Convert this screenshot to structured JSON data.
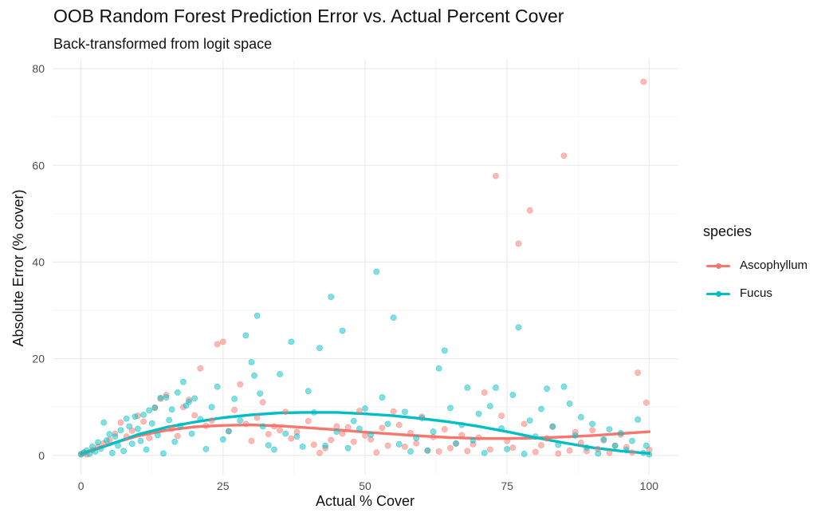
{
  "chart_data": {
    "type": "scatter",
    "title": "OOB Random Forest Prediction Error vs. Actual Percent Cover",
    "subtitle": "Back-transformed from logit space",
    "xlabel": "Actual % Cover",
    "ylabel": "Absolute Error (% cover)",
    "xlim": [
      -5,
      105
    ],
    "ylim": [
      -4,
      82
    ],
    "x_ticks": [
      0,
      25,
      50,
      75,
      100
    ],
    "y_ticks": [
      0,
      20,
      40,
      60,
      80
    ],
    "x_tick_labels": [
      "0",
      "25",
      "50",
      "75",
      "100"
    ],
    "y_tick_labels": [
      "0",
      "20",
      "40",
      "60",
      "80"
    ],
    "grid": true,
    "legend": {
      "title": "species",
      "placement": "right"
    },
    "series": [
      {
        "name": "Ascophyllum",
        "color": "#F8766D",
        "points": [
          [
            0,
            0.3
          ],
          [
            0.5,
            0.5
          ],
          [
            1,
            0.2
          ],
          [
            2,
            1.1
          ],
          [
            3,
            1.8
          ],
          [
            4,
            2.5
          ],
          [
            5,
            3.2
          ],
          [
            6,
            4.5
          ],
          [
            7,
            6.8
          ],
          [
            8,
            3.9
          ],
          [
            9,
            5.1
          ],
          [
            10,
            8.2
          ],
          [
            11,
            7.0
          ],
          [
            12,
            3.6
          ],
          [
            13,
            9.8
          ],
          [
            14,
            11.7
          ],
          [
            15,
            12.5
          ],
          [
            16,
            5.5
          ],
          [
            17,
            4.0
          ],
          [
            18,
            10.0
          ],
          [
            19,
            11.5
          ],
          [
            20,
            8.3
          ],
          [
            21,
            18.0
          ],
          [
            22,
            6.1
          ],
          [
            23,
            7.2
          ],
          [
            24,
            23.0
          ],
          [
            25,
            23.5
          ],
          [
            26,
            5.0
          ],
          [
            27,
            9.4
          ],
          [
            28,
            14.7
          ],
          [
            29,
            6.5
          ],
          [
            30,
            3.0
          ],
          [
            31,
            7.8
          ],
          [
            32,
            11.0
          ],
          [
            33,
            4.4
          ],
          [
            34,
            6.0
          ],
          [
            35,
            5.2
          ],
          [
            36,
            9.0
          ],
          [
            37,
            3.5
          ],
          [
            38,
            4.8
          ],
          [
            40,
            7.1
          ],
          [
            41,
            2.2
          ],
          [
            42,
            0.5
          ],
          [
            43,
            1.5
          ],
          [
            44,
            3.2
          ],
          [
            45,
            6.0
          ],
          [
            46,
            4.5
          ],
          [
            47,
            5.8
          ],
          [
            48,
            2.8
          ],
          [
            49,
            9.2
          ],
          [
            50,
            4.1
          ],
          [
            51,
            3.3
          ],
          [
            52,
            0.6
          ],
          [
            53,
            5.7
          ],
          [
            54,
            2.0
          ],
          [
            55,
            9.1
          ],
          [
            56,
            6.3
          ],
          [
            57,
            1.8
          ],
          [
            58,
            4.6
          ],
          [
            59,
            2.5
          ],
          [
            60,
            8.0
          ],
          [
            61,
            1.0
          ],
          [
            62,
            3.8
          ],
          [
            63,
            0.8
          ],
          [
            64,
            5.4
          ],
          [
            65,
            1.5
          ],
          [
            66,
            2.4
          ],
          [
            67,
            4.2
          ],
          [
            68,
            0.9
          ],
          [
            69,
            2.3
          ],
          [
            70,
            3.7
          ],
          [
            71,
            13.0
          ],
          [
            72,
            1.2
          ],
          [
            73,
            57.8
          ],
          [
            74,
            8.2
          ],
          [
            75,
            3.0
          ],
          [
            76,
            1.6
          ],
          [
            77,
            43.8
          ],
          [
            78,
            6.5
          ],
          [
            79,
            50.7
          ],
          [
            80,
            0.7
          ],
          [
            81,
            2.1
          ],
          [
            82,
            3.5
          ],
          [
            83,
            5.9
          ],
          [
            84,
            0.4
          ],
          [
            85,
            62.0
          ],
          [
            86,
            1.0
          ],
          [
            87,
            4.8
          ],
          [
            88,
            2.6
          ],
          [
            89,
            0.9
          ],
          [
            90,
            5.2
          ],
          [
            91,
            1.3
          ],
          [
            92,
            3.1
          ],
          [
            93,
            0.5
          ],
          [
            94,
            2.0
          ],
          [
            95,
            4.3
          ],
          [
            96,
            1.7
          ],
          [
            97,
            0.6
          ],
          [
            98,
            17.1
          ],
          [
            99,
            77.3
          ],
          [
            99.5,
            10.9
          ],
          [
            100,
            1.2
          ]
        ],
        "smooth": [
          [
            0,
            0.3
          ],
          [
            5,
            2.3
          ],
          [
            10,
            4.0
          ],
          [
            15,
            5.2
          ],
          [
            20,
            5.9
          ],
          [
            25,
            6.2
          ],
          [
            30,
            6.3
          ],
          [
            35,
            6.1
          ],
          [
            40,
            5.7
          ],
          [
            45,
            5.3
          ],
          [
            50,
            4.8
          ],
          [
            55,
            4.4
          ],
          [
            60,
            4.0
          ],
          [
            65,
            3.7
          ],
          [
            70,
            3.5
          ],
          [
            75,
            3.5
          ],
          [
            80,
            3.6
          ],
          [
            85,
            3.8
          ],
          [
            90,
            4.1
          ],
          [
            95,
            4.5
          ],
          [
            100,
            4.9
          ]
        ]
      },
      {
        "name": "Fucus",
        "color": "#00BFC4",
        "points": [
          [
            0,
            0.2
          ],
          [
            0.5,
            0.6
          ],
          [
            1,
            1.0
          ],
          [
            1.5,
            0.3
          ],
          [
            2,
            1.8
          ],
          [
            2.5,
            0.8
          ],
          [
            3,
            2.7
          ],
          [
            3.5,
            1.4
          ],
          [
            4,
            6.8
          ],
          [
            4.5,
            3.1
          ],
          [
            5,
            4.4
          ],
          [
            5.5,
            0.5
          ],
          [
            6,
            3.9
          ],
          [
            6.5,
            2.0
          ],
          [
            7,
            5.2
          ],
          [
            7.5,
            0.9
          ],
          [
            8,
            7.6
          ],
          [
            8.5,
            6.0
          ],
          [
            9,
            2.4
          ],
          [
            9.5,
            8.0
          ],
          [
            10,
            5.5
          ],
          [
            10.5,
            3.0
          ],
          [
            11,
            8.4
          ],
          [
            11.5,
            1.2
          ],
          [
            12,
            9.3
          ],
          [
            12.5,
            6.6
          ],
          [
            13,
            9.9
          ],
          [
            13.5,
            4.2
          ],
          [
            14,
            11.9
          ],
          [
            14.5,
            0.4
          ],
          [
            15,
            12.0
          ],
          [
            15.5,
            7.3
          ],
          [
            16,
            9.5
          ],
          [
            16.5,
            2.8
          ],
          [
            17,
            13.0
          ],
          [
            17.5,
            6.1
          ],
          [
            18,
            15.2
          ],
          [
            18.5,
            10.3
          ],
          [
            19,
            11.1
          ],
          [
            19.5,
            4.5
          ],
          [
            20,
            11.8
          ],
          [
            21,
            7.5
          ],
          [
            22,
            1.3
          ],
          [
            23,
            10.0
          ],
          [
            24,
            14.2
          ],
          [
            25,
            3.3
          ],
          [
            26,
            5.0
          ],
          [
            27,
            11.7
          ],
          [
            28,
            7.2
          ],
          [
            29,
            24.8
          ],
          [
            30,
            19.3
          ],
          [
            30.5,
            16.5
          ],
          [
            31,
            28.9
          ],
          [
            31.5,
            12.8
          ],
          [
            32,
            6.0
          ],
          [
            33,
            2.1
          ],
          [
            34,
            1.2
          ],
          [
            35,
            16.8
          ],
          [
            36,
            4.5
          ],
          [
            37,
            23.5
          ],
          [
            38,
            3.9
          ],
          [
            39,
            1.8
          ],
          [
            40,
            13.3
          ],
          [
            41,
            8.9
          ],
          [
            42,
            22.2
          ],
          [
            43,
            2.0
          ],
          [
            44,
            32.8
          ],
          [
            45,
            4.9
          ],
          [
            46,
            25.8
          ],
          [
            47,
            1.5
          ],
          [
            48,
            7.1
          ],
          [
            49,
            5.5
          ],
          [
            50,
            9.7
          ],
          [
            51,
            4.3
          ],
          [
            52,
            38.0
          ],
          [
            53,
            12.0
          ],
          [
            54,
            6.5
          ],
          [
            55,
            28.5
          ],
          [
            56,
            2.3
          ],
          [
            57,
            9.0
          ],
          [
            58,
            0.8
          ],
          [
            59,
            3.6
          ],
          [
            60,
            7.7
          ],
          [
            61,
            1.0
          ],
          [
            62,
            4.9
          ],
          [
            63,
            18.0
          ],
          [
            64,
            21.7
          ],
          [
            65,
            9.8
          ],
          [
            66,
            2.5
          ],
          [
            67,
            6.3
          ],
          [
            68,
            14.0
          ],
          [
            69,
            3.1
          ],
          [
            70,
            8.6
          ],
          [
            71,
            0.5
          ],
          [
            72,
            10.2
          ],
          [
            73,
            14.0
          ],
          [
            74,
            5.6
          ],
          [
            75,
            1.3
          ],
          [
            76,
            12.5
          ],
          [
            77,
            26.5
          ],
          [
            78,
            0.3
          ],
          [
            79,
            7.2
          ],
          [
            80,
            3.9
          ],
          [
            81,
            9.6
          ],
          [
            82,
            13.8
          ],
          [
            83,
            6.0
          ],
          [
            84,
            2.2
          ],
          [
            85,
            14.2
          ],
          [
            86,
            10.7
          ],
          [
            87,
            4.1
          ],
          [
            88,
            7.9
          ],
          [
            89,
            1.6
          ],
          [
            90,
            6.5
          ],
          [
            91,
            0.4
          ],
          [
            92,
            3.3
          ],
          [
            93,
            5.4
          ],
          [
            94,
            2.0
          ],
          [
            95,
            4.6
          ],
          [
            96,
            1.1
          ],
          [
            97,
            3.0
          ],
          [
            98,
            7.4
          ],
          [
            99,
            0.5
          ],
          [
            99.5,
            2.0
          ],
          [
            100,
            0.2
          ]
        ],
        "smooth": [
          [
            0,
            0.3
          ],
          [
            5,
            2.2
          ],
          [
            10,
            4.3
          ],
          [
            15,
            5.8
          ],
          [
            20,
            6.9
          ],
          [
            25,
            7.8
          ],
          [
            30,
            8.4
          ],
          [
            35,
            8.8
          ],
          [
            40,
            8.9
          ],
          [
            45,
            8.9
          ],
          [
            50,
            8.6
          ],
          [
            55,
            8.2
          ],
          [
            60,
            7.6
          ],
          [
            65,
            6.9
          ],
          [
            70,
            6.0
          ],
          [
            75,
            4.9
          ],
          [
            80,
            3.7
          ],
          [
            85,
            2.6
          ],
          [
            90,
            1.6
          ],
          [
            95,
            0.9
          ],
          [
            100,
            0.4
          ]
        ]
      }
    ]
  }
}
